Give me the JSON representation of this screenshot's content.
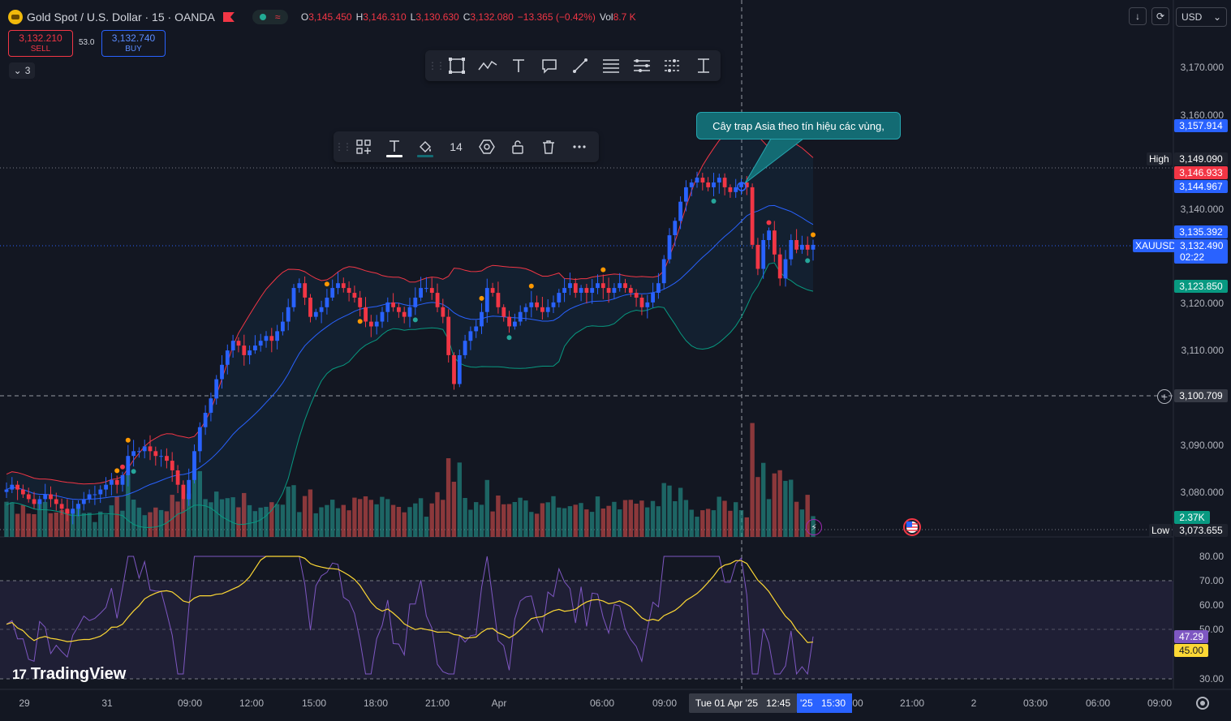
{
  "legend": {
    "symbol": "Gold Spot / U.S. Dollar · 15 · OANDA",
    "o_key": "O",
    "o_val": "3,145.450",
    "h_key": "H",
    "h_val": "3,146.310",
    "l_key": "L",
    "l_val": "3,130.630",
    "c_key": "C",
    "c_val": "3,132.080",
    "change": "−13.365 (−0.42%)",
    "vol_key": "Vol",
    "vol_val": "8.7 K"
  },
  "trade": {
    "sell_price": "3,132.210",
    "sell_label": "SELL",
    "spread": "53.0",
    "buy_price": "3,132.740",
    "buy_label": "BUY"
  },
  "collapse": {
    "count": "3"
  },
  "currency": {
    "label": "USD"
  },
  "callout": {
    "text": "Cây trap Asia theo tín hiệu các vùng,"
  },
  "prop_toolbar": {
    "font_size": "14"
  },
  "price_axis": {
    "ticks": [
      "3,170.000",
      "3,160.000",
      "3,140.000",
      "3,120.000",
      "3,110.000",
      "3,090.000",
      "3,080.000"
    ],
    "labels": {
      "bb_upper": "3,157.914",
      "high": "3,149.090",
      "ask": "3,146.933",
      "bb_mid": "3,144.967",
      "last_a": "3,135.392",
      "last_b": "3,132.490",
      "countdown": "02:22",
      "bb_lower": "3,123.850",
      "crosshair": "3,100.709",
      "volume": "2.37K",
      "low": "3,073.655"
    },
    "tags": {
      "high": "High",
      "low": "Low",
      "symbol": "XAUUSD"
    }
  },
  "rsi_axis": {
    "ticks": [
      "80.00",
      "70.00",
      "60.00",
      "50.00",
      "30.00"
    ],
    "rsi_value": "47.29",
    "ma_value": "45.00"
  },
  "time_axis": {
    "ticks": [
      "29",
      "31",
      "09:00",
      "12:00",
      "15:00",
      "18:00",
      "21:00",
      "Apr",
      "06:00",
      "09:00",
      "00",
      "21:00",
      "2",
      "03:00",
      "06:00",
      "09:00"
    ],
    "crosshair_date": "Tue 01 Apr '25",
    "crosshair_time": "12:45",
    "range_a": "'25",
    "range_b": "15:30"
  },
  "branding": {
    "logo": "TradingView"
  },
  "colors": {
    "background": "#131722",
    "up": "#2962ff",
    "down": "#f23645",
    "bb_upper": "#f23645",
    "bb_mid": "#2962ff",
    "bb_lower": "#089981",
    "rsi": "#7e57c2",
    "rsi_ma": "#fdd835",
    "vol_up": "#26a69a",
    "vol_down": "#ef5350"
  },
  "chart_data": {
    "type": "candlestick",
    "xlabel": "",
    "ylabel": "",
    "ylim": [
      3073.655,
      3170
    ],
    "closes": [
      3082,
      3083,
      3082,
      3081,
      3080,
      3079,
      3080,
      3081,
      3080,
      3079,
      3078,
      3077,
      3078,
      3079,
      3080,
      3081,
      3081,
      3082,
      3083,
      3084,
      3083,
      3085,
      3089,
      3090,
      3090,
      3091,
      3090,
      3089,
      3089,
      3088,
      3086,
      3083,
      3080,
      3084,
      3090,
      3095,
      3098,
      3101,
      3105,
      3108,
      3111,
      3113,
      3112,
      3110,
      3111,
      3112,
      3113,
      3114,
      3113,
      3115,
      3117,
      3120,
      3124,
      3125,
      3122,
      3118,
      3119,
      3120,
      3122,
      3124,
      3125,
      3124,
      3123,
      3122,
      3120,
      3117,
      3116,
      3117,
      3119,
      3121,
      3120,
      3119,
      3118,
      3120,
      3122,
      3124,
      3124,
      3123,
      3120,
      3118,
      3110,
      3104,
      3110,
      3113,
      3115,
      3116,
      3119,
      3124,
      3123,
      3120,
      3118,
      3116,
      3117,
      3119,
      3120,
      3121,
      3120,
      3119,
      3120,
      3121,
      3123,
      3124,
      3125,
      3123,
      3124,
      3123,
      3124,
      3125,
      3124,
      3123,
      3124,
      3125,
      3124,
      3123,
      3122,
      3120,
      3121,
      3123,
      3125,
      3130,
      3135,
      3138,
      3142,
      3145,
      3146,
      3147,
      3146,
      3145,
      3146,
      3147,
      3145,
      3144,
      3145,
      3146,
      3145,
      3133,
      3128,
      3134,
      3136,
      3131,
      3126,
      3130,
      3134,
      3132,
      3133,
      3132,
      3133
    ],
    "volume_peak_k": 8.7,
    "rsi_last": 47.29,
    "rsi_ma_last": 45.0,
    "rsi_levels": [
      70,
      50,
      30
    ]
  }
}
